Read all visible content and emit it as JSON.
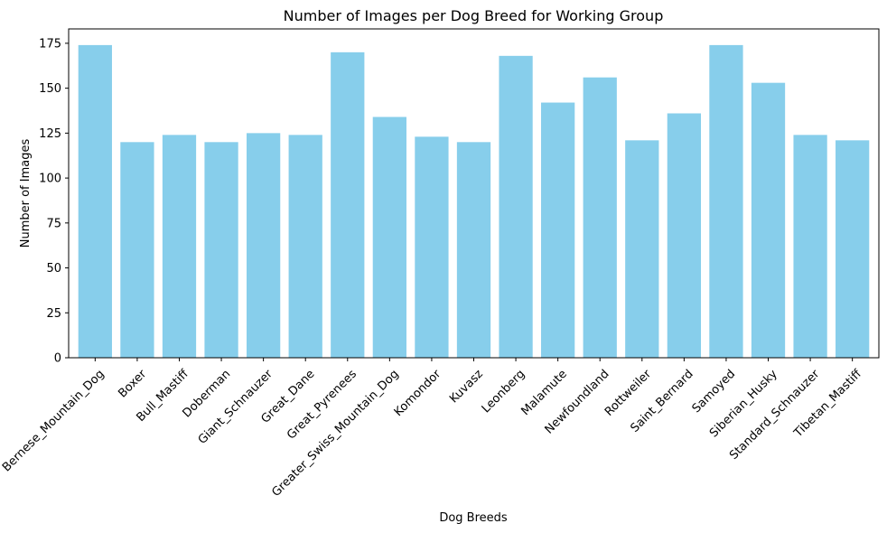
{
  "chart_data": {
    "type": "bar",
    "title": "Number of Images per Dog Breed for Working Group",
    "xlabel": "Dog Breeds",
    "ylabel": "Number of Images",
    "categories": [
      "Bernese_Mountain_Dog",
      "Boxer",
      "Bull_Mastiff",
      "Doberman",
      "Giant_Schnauzer",
      "Great_Dane",
      "Great_Pyrenees",
      "Greater_Swiss_Mountain_Dog",
      "Komondor",
      "Kuvasz",
      "Leonberg",
      "Malamute",
      "Newfoundland",
      "Rottweiler",
      "Saint_Bernard",
      "Samoyed",
      "Siberian_Husky",
      "Standard_Schnauzer",
      "Tibetan_Mastiff"
    ],
    "values": [
      174,
      120,
      124,
      120,
      125,
      124,
      170,
      134,
      123,
      120,
      168,
      142,
      156,
      121,
      136,
      174,
      153,
      124,
      121
    ],
    "ylim": [
      0,
      183
    ],
    "yticks": [
      0,
      25,
      50,
      75,
      100,
      125,
      150,
      175
    ],
    "bar_color": "#87ceeb",
    "grid": false,
    "legend": "none"
  }
}
